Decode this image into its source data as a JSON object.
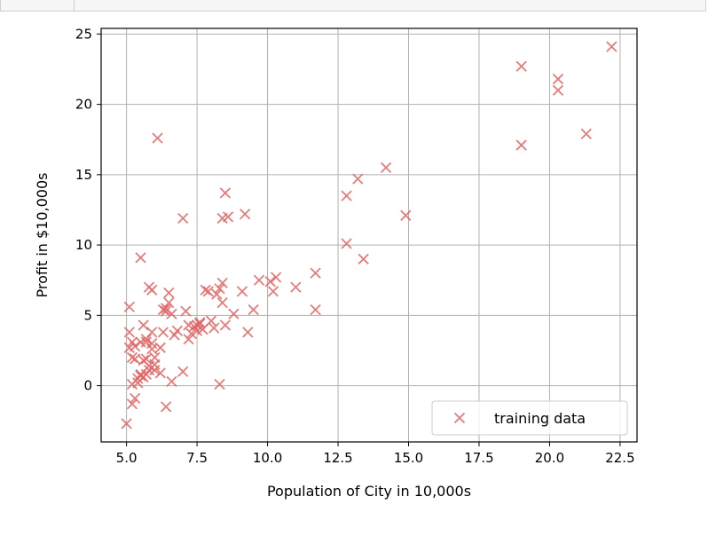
{
  "chart_data": {
    "type": "scatter",
    "xlabel": "Population of City in 10,000s",
    "ylabel": "Profit in $10,000s",
    "xlim": [
      4.1,
      23.1
    ],
    "ylim": [
      -4.0,
      25.4
    ],
    "xticks": [
      "5.0",
      "7.5",
      "10.0",
      "12.5",
      "15.0",
      "17.5",
      "20.0",
      "22.5"
    ],
    "xtick_values": [
      5.0,
      7.5,
      10.0,
      12.5,
      15.0,
      17.5,
      20.0,
      22.5
    ],
    "yticks": [
      "0",
      "5",
      "10",
      "15",
      "20",
      "25"
    ],
    "ytick_values": [
      0,
      5,
      10,
      15,
      20,
      25
    ],
    "grid": true,
    "legend_position": "lower-right",
    "series": [
      {
        "name": "training data",
        "marker": "x",
        "color": "#e06666",
        "points": [
          [
            6.1,
            17.6
          ],
          [
            5.5,
            9.1
          ],
          [
            8.5,
            13.7
          ],
          [
            7.0,
            11.9
          ],
          [
            5.9,
            6.8
          ],
          [
            8.4,
            11.9
          ],
          [
            7.5,
            4.3
          ],
          [
            8.6,
            12.0
          ],
          [
            6.5,
            6.6
          ],
          [
            5.1,
            3.8
          ],
          [
            5.7,
            3.3
          ],
          [
            14.2,
            15.5
          ],
          [
            5.7,
            3.1
          ],
          [
            6.2,
            0.9
          ],
          [
            5.9,
            3.0
          ],
          [
            7.2,
            3.3
          ],
          [
            5.1,
            2.7
          ],
          [
            5.5,
            0.7
          ],
          [
            5.6,
            4.3
          ],
          [
            6.8,
            3.9
          ],
          [
            5.3,
            2.8
          ],
          [
            5.0,
            -2.7
          ],
          [
            5.2,
            -1.3
          ],
          [
            5.3,
            -0.9
          ],
          [
            6.4,
            -1.5
          ],
          [
            5.6,
            0.6
          ],
          [
            5.2,
            0.1
          ],
          [
            5.5,
            0.8
          ],
          [
            5.7,
            1.9
          ],
          [
            5.9,
            2.6
          ],
          [
            6.0,
            1.1
          ],
          [
            6.3,
            3.8
          ],
          [
            6.4,
            5.3
          ],
          [
            6.5,
            5.9
          ],
          [
            6.6,
            0.3
          ],
          [
            7.0,
            1.0
          ],
          [
            7.2,
            4.3
          ],
          [
            7.4,
            4.2
          ],
          [
            7.6,
            4.4
          ],
          [
            7.8,
            6.8
          ],
          [
            8.0,
            4.6
          ],
          [
            8.2,
            6.5
          ],
          [
            8.3,
            0.1
          ],
          [
            8.4,
            5.9
          ],
          [
            8.5,
            4.3
          ],
          [
            8.8,
            5.1
          ],
          [
            9.1,
            6.7
          ],
          [
            9.3,
            3.8
          ],
          [
            9.5,
            5.4
          ],
          [
            9.7,
            7.5
          ],
          [
            10.1,
            7.4
          ],
          [
            10.2,
            6.7
          ],
          [
            11.0,
            7.0
          ],
          [
            11.7,
            5.4
          ],
          [
            11.7,
            8.0
          ],
          [
            12.8,
            10.1
          ],
          [
            12.8,
            13.5
          ],
          [
            13.2,
            14.7
          ],
          [
            13.4,
            9.0
          ],
          [
            14.9,
            12.1
          ],
          [
            19.0,
            17.1
          ],
          [
            19.0,
            22.7
          ],
          [
            20.3,
            21.8
          ],
          [
            20.3,
            21.0
          ],
          [
            21.3,
            17.9
          ],
          [
            22.2,
            24.1
          ],
          [
            9.2,
            12.2
          ],
          [
            10.3,
            7.7
          ],
          [
            7.1,
            5.3
          ],
          [
            6.4,
            5.5
          ],
          [
            5.8,
            7.0
          ],
          [
            5.4,
            0.5
          ],
          [
            5.6,
            1.8
          ],
          [
            5.8,
            1.1
          ],
          [
            6.0,
            2.0
          ],
          [
            6.2,
            2.7
          ],
          [
            5.1,
            5.6
          ],
          [
            5.3,
            1.9
          ],
          [
            5.5,
            3.1
          ],
          [
            5.7,
            0.8
          ],
          [
            6.0,
            1.5
          ],
          [
            6.7,
            3.6
          ],
          [
            7.3,
            3.7
          ],
          [
            7.7,
            4.0
          ],
          [
            7.9,
            6.7
          ],
          [
            8.1,
            4.1
          ],
          [
            8.3,
            6.9
          ],
          [
            8.4,
            7.3
          ],
          [
            5.4,
            0.2
          ],
          [
            5.2,
            2.0
          ],
          [
            5.8,
            1.4
          ],
          [
            5.9,
            3.8
          ],
          [
            6.3,
            5.4
          ],
          [
            7.5,
            3.9
          ],
          [
            7.6,
            4.5
          ],
          [
            6.6,
            5.1
          ],
          [
            5.2,
            3.1
          ]
        ]
      }
    ]
  }
}
